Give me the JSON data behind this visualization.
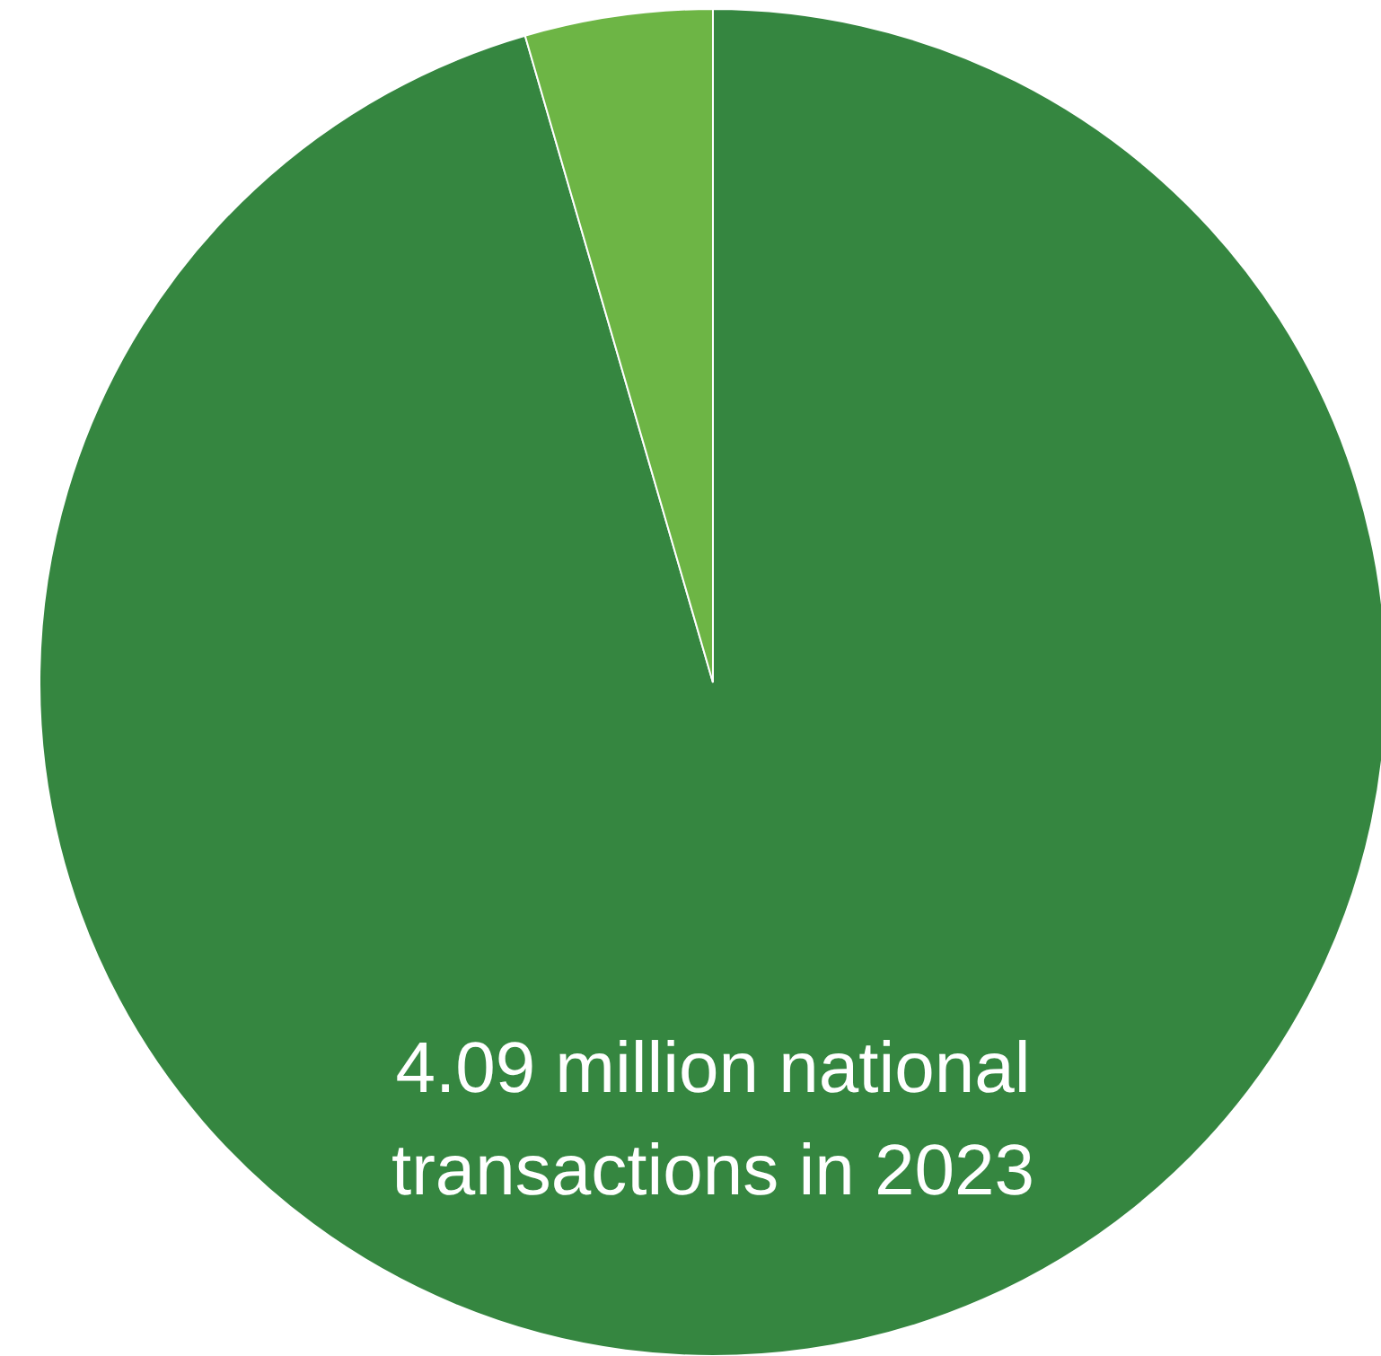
{
  "chart_data": {
    "type": "pie",
    "categories": [
      null,
      null
    ],
    "values": [
      95.5,
      4.5
    ],
    "colors": [
      "#358640",
      "#6db545"
    ],
    "annotations": [
      "4.09 million national transactions in 2023"
    ]
  }
}
